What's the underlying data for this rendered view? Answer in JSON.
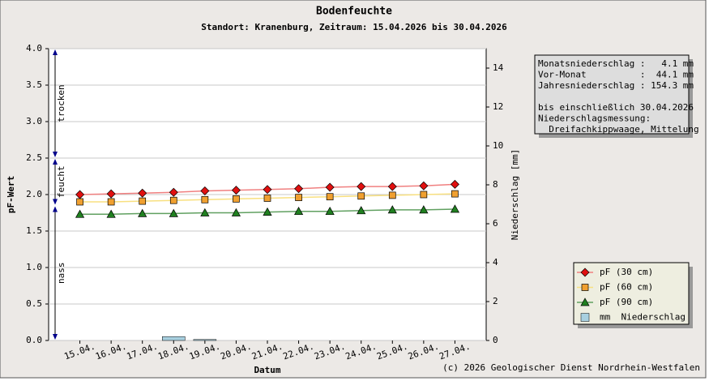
{
  "chart_data": {
    "type": "line",
    "title": "Bodenfeuchte",
    "subtitle": "Standort: Kranenburg, Zeitraum: 15.04.2026 bis 30.04.2026",
    "xlabel": "Datum",
    "ylabel": "pF-Wert",
    "y2label": "Niederschlag [mm]",
    "categories": [
      "15.04.",
      "16.04.",
      "17.04.",
      "18.04.",
      "19.04.",
      "20.04.",
      "21.04.",
      "22.04.",
      "23.04.",
      "24.04.",
      "25.04.",
      "26.04.",
      "27.04."
    ],
    "series": [
      {
        "name": "pF (30 cm)",
        "color": "#e01010",
        "line_color": "#f08080",
        "marker": "diamond",
        "values": [
          2.0,
          2.01,
          2.02,
          2.03,
          2.05,
          2.06,
          2.07,
          2.08,
          2.1,
          2.11,
          2.11,
          2.12,
          2.14
        ]
      },
      {
        "name": "pF (60 cm)",
        "color": "#f0a030",
        "line_color": "#f8e080",
        "marker": "square",
        "values": [
          1.9,
          1.9,
          1.91,
          1.92,
          1.93,
          1.94,
          1.95,
          1.96,
          1.97,
          1.98,
          1.99,
          2.0,
          2.01
        ]
      },
      {
        "name": "pF (90 cm)",
        "color": "#208020",
        "line_color": "#60a060",
        "marker": "triangle",
        "values": [
          1.73,
          1.73,
          1.74,
          1.74,
          1.75,
          1.75,
          1.76,
          1.77,
          1.77,
          1.78,
          1.79,
          1.79,
          1.8
        ]
      },
      {
        "name": "mm  Niederschlag",
        "color": "#a8d0e0",
        "type": "bar",
        "axis": "y2",
        "values": [
          0,
          0,
          0,
          0.2,
          0.05,
          0,
          0,
          0,
          0,
          0,
          0,
          0,
          0
        ]
      }
    ],
    "ylim": [
      0,
      4
    ],
    "yticks": [
      {
        "value": 0,
        "label": "0.0"
      },
      {
        "value": 0.5,
        "label": "0.5"
      },
      {
        "value": 1,
        "label": "1.0"
      },
      {
        "value": 1.5,
        "label": "1.5"
      },
      {
        "value": 2,
        "label": "2.0"
      },
      {
        "value": 2.5,
        "label": "2.5"
      },
      {
        "value": 3,
        "label": "3.0"
      },
      {
        "value": 3.5,
        "label": "3.5"
      },
      {
        "value": 4,
        "label": "4.0"
      }
    ],
    "y2lim": [
      0,
      15
    ],
    "y2ticks": [
      0,
      2,
      4,
      6,
      8,
      10,
      12,
      14
    ],
    "grid": true,
    "zones": [
      {
        "label": "trocken",
        "from": 2.5,
        "to": 4.0
      },
      {
        "label": "feucht",
        "from": 1.85,
        "to": 2.5
      },
      {
        "label": "nass",
        "from": 0,
        "to": 1.85
      }
    ],
    "info": [
      "Monatsniederschlag :   4.1 mm",
      "Vor-Monat          :  44.1 mm",
      "Jahresniederschlag : 154.3 mm",
      "bis einschließlich 30.04.2026",
      "Niederschlagsmessung:",
      "  Dreifachkippwaage, Mittelung"
    ],
    "legend": "lower right",
    "footer": "(c) 2026 Geologischer Dienst Nordrhein-Westfalen"
  }
}
